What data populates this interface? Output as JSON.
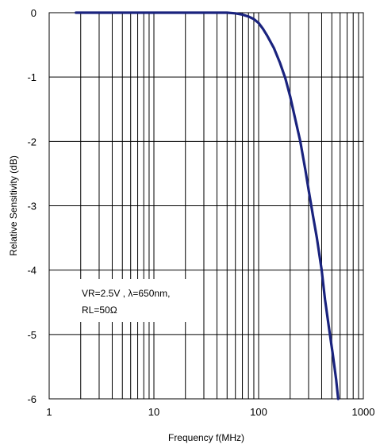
{
  "chart_data": {
    "type": "line",
    "xscale": "log",
    "xlabel": "Frequency f(MHz)",
    "ylabel": "Relative Sensitivity (dB)",
    "xlim": [
      1,
      1000
    ],
    "ylim": [
      -6,
      0
    ],
    "grid": true,
    "xticks": [
      1,
      10,
      100,
      1000
    ],
    "xtick_labels": [
      "1",
      "10",
      "100",
      "1000"
    ],
    "yticks": [
      0,
      -1,
      -2,
      -3,
      -4,
      -5,
      -6
    ],
    "ytick_labels": [
      "0",
      "-1",
      "-2",
      "-3",
      "-4",
      "-5",
      "-6"
    ],
    "annotation_lines": [
      "VR=2.5V , λ=650nm,",
      "RL=50Ω"
    ],
    "series": [
      {
        "color": "#1a237e",
        "x": [
          1.8,
          10,
          30,
          50,
          60,
          70,
          80,
          90,
          100,
          110,
          120,
          140,
          160,
          180,
          200,
          220,
          250,
          280,
          300,
          330,
          360,
          400,
          430,
          470,
          510,
          550,
          575
        ],
        "y": [
          0,
          0,
          0,
          0,
          -0.01,
          -0.03,
          -0.06,
          -0.1,
          -0.16,
          -0.25,
          -0.35,
          -0.55,
          -0.78,
          -1.02,
          -1.3,
          -1.6,
          -2.0,
          -2.45,
          -2.75,
          -3.15,
          -3.5,
          -4.0,
          -4.45,
          -4.9,
          -5.3,
          -5.7,
          -6.0
        ]
      }
    ]
  }
}
